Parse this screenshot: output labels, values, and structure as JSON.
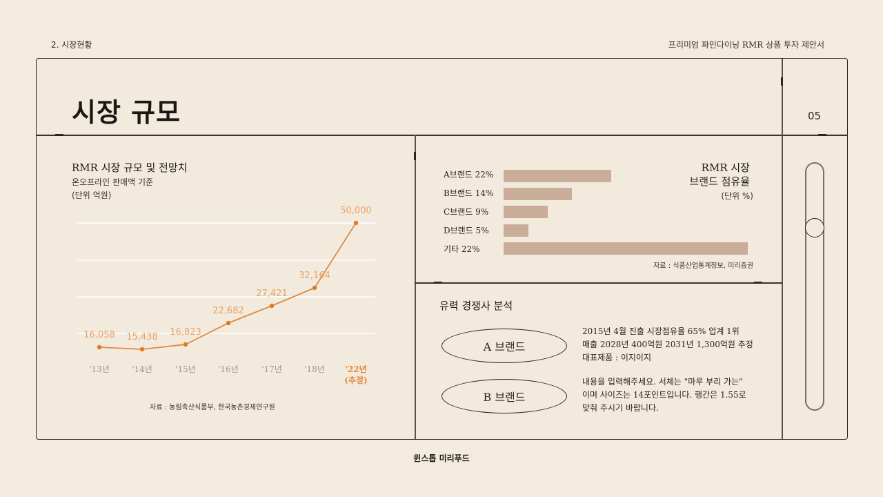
{
  "header": {
    "section": "2.  시장현황",
    "doc_title": "프리미엄 파인다이닝 RMR 상품 투자 제안서"
  },
  "page": {
    "title": "시장 규모",
    "number": "05"
  },
  "market_chart": {
    "title": "RMR 시장 규모 및 전망치",
    "subtitle": "온오프라인 판매액 기준",
    "unit": "(단위 억원)",
    "source": "자료 : 농림축산식품부, 한국농촌경제연구원",
    "line_color": "#e08a3c",
    "label_color": "#e6a36a"
  },
  "chart_data": [
    {
      "type": "line",
      "title": "RMR 시장 규모 및 전망치",
      "subtitle": "온오프라인 판매액 기준",
      "ylabel": "단위 억원",
      "categories": [
        "'13년",
        "'14년",
        "'15년",
        "'16년",
        "'17년",
        "'18년",
        "'22년 (추정)"
      ],
      "values": [
        16058,
        15438,
        16823,
        22682,
        27421,
        32164,
        50000
      ],
      "value_labels": [
        "16,058",
        "15,438",
        "16,823",
        "22,682",
        "27,421",
        "32,164",
        "50,000"
      ],
      "grid": true,
      "highlight_category": "'22년 (추정)"
    },
    {
      "type": "bar",
      "orientation": "horizontal",
      "title": "RMR 시장 브랜드 점유율",
      "unit": "(단위 %)",
      "categories": [
        "A브랜드",
        "B브랜드",
        "C브랜드",
        "D브랜드",
        "기타"
      ],
      "values": [
        22,
        14,
        9,
        5,
        22
      ],
      "labels": [
        "A브랜드 22%",
        "B브랜드 14%",
        "C브랜드 9%",
        "D브랜드 5%",
        "기타 22%"
      ],
      "bar_color": "#c9ad98",
      "source": "자료 : 식품산업통계정보, 미리증권"
    }
  ],
  "share_chart": {
    "title_line1": "RMR 시장",
    "title_line2": "브랜드 점유율",
    "unit": "(단위 %)",
    "source": "자료 : 식품산업통계정보, 미리증권",
    "bars": [
      {
        "label": "A브랜드 22%"
      },
      {
        "label": "B브랜드 14%"
      },
      {
        "label": "C브랜드 9%"
      },
      {
        "label": "D브랜드 5%"
      },
      {
        "label": "기타 22%"
      }
    ]
  },
  "competitors": {
    "title": "유력 경쟁사 분석",
    "items": [
      {
        "name": "A 브랜드",
        "lines": [
          "2015년 4월 진출 시장점유율 65% 업계 1위",
          "매출 2028년 400억원 2031년 1,300억원 추정",
          "대표제품 : 이지이지"
        ]
      },
      {
        "name": "B 브랜드",
        "lines": [
          "내용을 입력해주세요. 서체는 \"마루 부리 가는\"",
          "이며 사이즈는 14포인트입니다. 행간은 1.55로",
          "맞춰 주시기 바랍니다."
        ]
      }
    ]
  },
  "footer": {
    "brand": "윈스톱 미리푸드"
  }
}
